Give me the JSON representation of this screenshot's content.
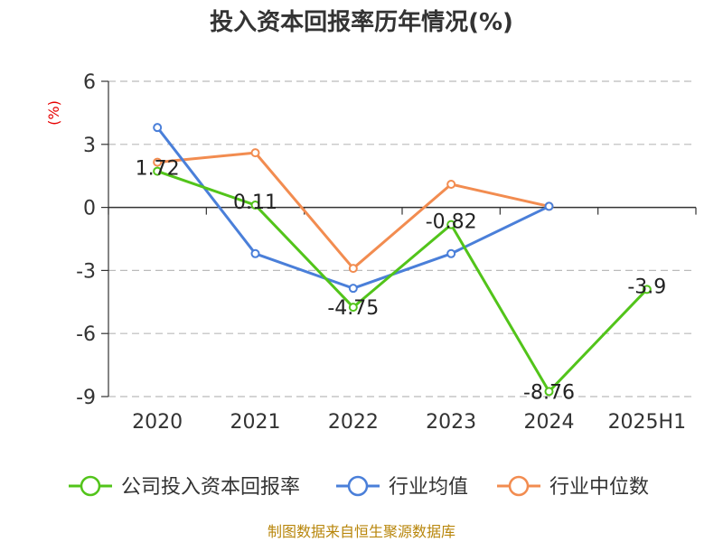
{
  "chart_data": {
    "type": "line",
    "title": "投入资本回报率历年情况(%)",
    "ylabel": "(%)",
    "categories": [
      "2020",
      "2021",
      "2022",
      "2023",
      "2024",
      "2025H1"
    ],
    "ylim": [
      -9,
      6
    ],
    "yticks": [
      6,
      3,
      0,
      -3,
      -6,
      -9
    ],
    "grid": true,
    "legend_position": "bottom",
    "series": [
      {
        "name": "公司投入资本回报率",
        "color": "#52c41a",
        "values": [
          1.72,
          0.11,
          -4.75,
          -0.82,
          -8.76,
          -3.9
        ],
        "labels": [
          "1.72",
          "0.11",
          "-4.75",
          "-0.82",
          "-8.76",
          "-3.9"
        ]
      },
      {
        "name": "行业均值",
        "color": "#4a7fd9",
        "values": [
          3.8,
          -2.2,
          -3.85,
          -2.2,
          0.05,
          null
        ]
      },
      {
        "name": "行业中位数",
        "color": "#f28c50",
        "values": [
          2.15,
          2.6,
          -2.9,
          1.1,
          0.05,
          null
        ]
      }
    ]
  },
  "source": "制图数据来自恒生聚源数据库"
}
